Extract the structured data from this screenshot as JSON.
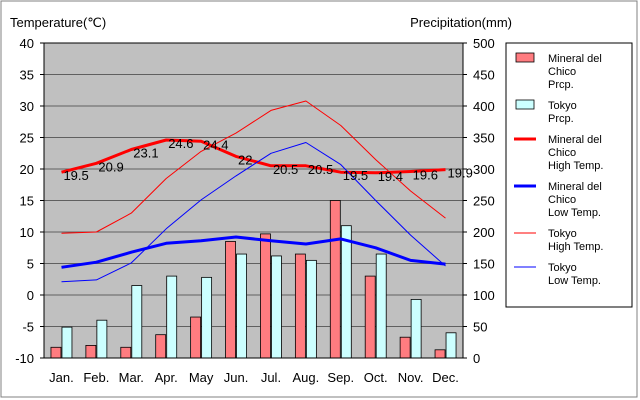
{
  "chart_data": {
    "type": "bar+line",
    "left_axis_label": "Temperature(℃)",
    "right_axis_label": "Precipitation(mm)",
    "categories": [
      "Jan.",
      "Feb.",
      "Mar.",
      "Apr.",
      "May",
      "Jun.",
      "Jul.",
      "Aug.",
      "Sep.",
      "Oct.",
      "Nov.",
      "Dec."
    ],
    "temp_range": [
      -10,
      40
    ],
    "temp_ticks": [
      -10,
      -5,
      0,
      5,
      10,
      15,
      20,
      25,
      30,
      35,
      40
    ],
    "precip_range": [
      0,
      500
    ],
    "precip_ticks": [
      0,
      50,
      100,
      150,
      200,
      250,
      300,
      350,
      400,
      450,
      500
    ],
    "grid": true,
    "legend_position": "right",
    "precip_series": [
      {
        "name": "Mineral del Chico Prcp.",
        "color": "#ff7c80",
        "values": [
          17,
          20,
          17,
          37,
          65,
          185,
          197,
          165,
          250,
          130,
          33,
          13
        ]
      },
      {
        "name": "Tokyo Prcp.",
        "color": "#ccffff",
        "values": [
          49,
          60,
          115,
          130,
          128,
          165,
          162,
          155,
          210,
          165,
          93,
          40
        ]
      }
    ],
    "temp_series": [
      {
        "name": "Mineral del Chico High Temp.",
        "color": "#ff0000",
        "width": 3,
        "values": [
          19.5,
          20.9,
          23.1,
          24.6,
          24.4,
          22,
          20.5,
          20.5,
          19.5,
          19.4,
          19.6,
          19.9
        ]
      },
      {
        "name": "Mineral del Chico Low Temp.",
        "color": "#0000ff",
        "width": 3,
        "values": [
          4.4,
          5.2,
          6.8,
          8.2,
          8.6,
          9.2,
          8.6,
          8.1,
          8.9,
          7.5,
          5.5,
          4.9
        ]
      },
      {
        "name": "Tokyo High Temp.",
        "color": "#ff0000",
        "width": 1,
        "values": [
          9.8,
          10.0,
          13.0,
          18.5,
          22.8,
          25.7,
          29.3,
          30.8,
          26.9,
          21.5,
          16.5,
          12.2
        ]
      },
      {
        "name": "Tokyo Low Temp.",
        "color": "#0000ff",
        "width": 1,
        "values": [
          2.1,
          2.4,
          5.1,
          10.5,
          15.1,
          18.9,
          22.5,
          24.2,
          20.7,
          15.0,
          9.5,
          4.6
        ]
      }
    ],
    "high_temp_labels": [
      "19.5",
      "20.9",
      "23.1",
      "24.6",
      "24.4",
      "22",
      "20.5",
      "20.5",
      "19.5",
      "19.4",
      "19.6",
      "19.9"
    ],
    "legend": [
      {
        "kind": "box",
        "color": "#ff7c80",
        "lines": [
          "Mineral del",
          "Chico",
          "Prcp."
        ]
      },
      {
        "kind": "box",
        "color": "#ccffff",
        "lines": [
          "Tokyo",
          "Prcp."
        ]
      },
      {
        "kind": "line",
        "color": "#ff0000",
        "width": 3,
        "lines": [
          "Mineral del",
          "Chico",
          "High Temp."
        ]
      },
      {
        "kind": "line",
        "color": "#0000ff",
        "width": 3,
        "lines": [
          "Mineral del",
          "Chico",
          "Low Temp."
        ]
      },
      {
        "kind": "line",
        "color": "#ff0000",
        "width": 1,
        "lines": [
          "Tokyo",
          "High Temp."
        ]
      },
      {
        "kind": "line",
        "color": "#0000ff",
        "width": 1,
        "lines": [
          "Tokyo",
          "Low Temp."
        ]
      }
    ]
  }
}
